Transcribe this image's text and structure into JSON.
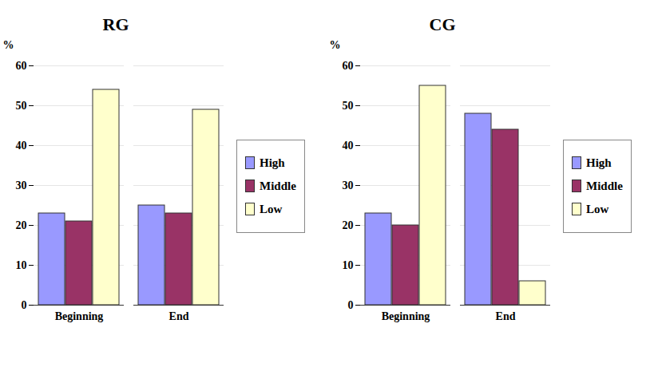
{
  "chart_data": [
    {
      "type": "bar",
      "title": "RG",
      "y_label": "%",
      "categories": [
        "Beginning",
        "End"
      ],
      "series": [
        {
          "name": "High",
          "color": "#9999ff",
          "values": [
            23,
            25
          ]
        },
        {
          "name": "Middle",
          "color": "#993366",
          "values": [
            21,
            23
          ]
        },
        {
          "name": "Low",
          "color": "#ffffcc",
          "values": [
            54,
            49
          ]
        }
      ],
      "ylim": [
        0,
        60
      ],
      "yticks": [
        0,
        10,
        20,
        30,
        40,
        50,
        60
      ],
      "grid": true,
      "legend": "right"
    },
    {
      "type": "bar",
      "title": "CG",
      "y_label": "%",
      "categories": [
        "Beginning",
        "End"
      ],
      "series": [
        {
          "name": "High",
          "color": "#9999ff",
          "values": [
            23,
            48
          ]
        },
        {
          "name": "Middle",
          "color": "#993366",
          "values": [
            20,
            44
          ]
        },
        {
          "name": "Low",
          "color": "#ffffcc",
          "values": [
            55,
            6
          ]
        }
      ],
      "ylim": [
        0,
        60
      ],
      "yticks": [
        0,
        10,
        20,
        30,
        40,
        50,
        60
      ],
      "grid": true,
      "legend": "right"
    }
  ]
}
